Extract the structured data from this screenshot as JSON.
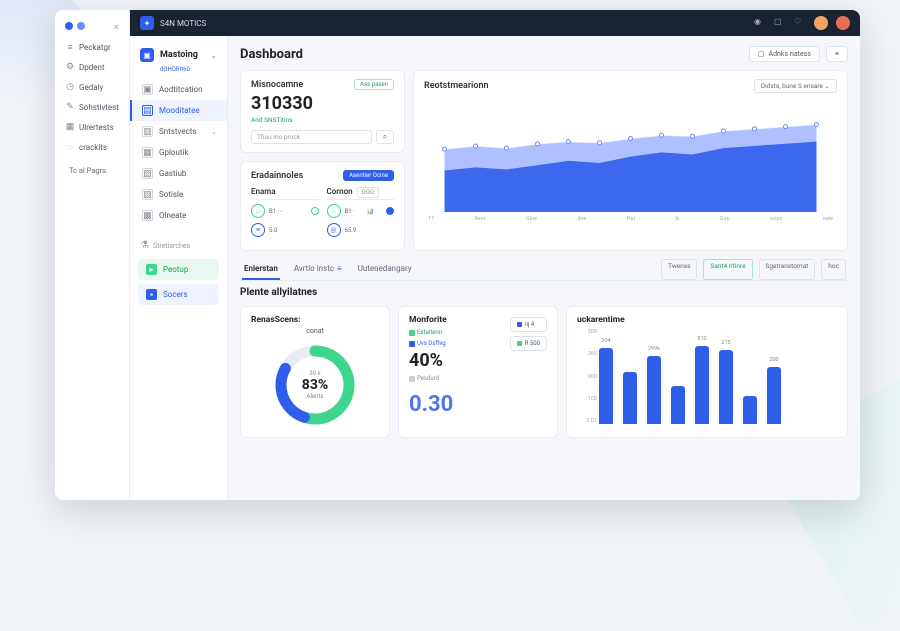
{
  "topbar": {
    "brand": "S4N MOTICS"
  },
  "sidebar_outer": {
    "items": [
      {
        "icon": "≡",
        "label": "Peckatgr"
      },
      {
        "icon": "⚙",
        "label": "Dpdent"
      },
      {
        "icon": "◷",
        "label": "Gedaly"
      },
      {
        "icon": "✎",
        "label": "Sohstivtest"
      },
      {
        "icon": "▦",
        "label": "Ulrertests"
      },
      {
        "icon": "◌",
        "label": "crackits"
      }
    ],
    "footer": "Tc al Pagrs"
  },
  "sidebar_inner": {
    "title": "Mastoing",
    "subtitle": "dGHORIt60",
    "items": [
      {
        "icon": "▣",
        "label": "Aodtitcation",
        "active": false,
        "chev": false
      },
      {
        "icon": "▤",
        "label": "Mooditatee",
        "active": true,
        "chev": false
      },
      {
        "icon": "▥",
        "label": "Sntstvects",
        "active": false,
        "chev": true
      },
      {
        "icon": "▦",
        "label": "Gploutik",
        "active": false,
        "chev": false
      },
      {
        "icon": "▧",
        "label": "Gastiub",
        "active": false,
        "chev": false
      },
      {
        "icon": "▨",
        "label": "Sotisle",
        "active": false,
        "chev": false
      },
      {
        "icon": "▩",
        "label": "Olneate",
        "active": false,
        "chev": false
      }
    ],
    "section_label": "Stretisrches",
    "btn_green": "Peotup",
    "btn_blue": "Socers"
  },
  "page": {
    "title": "Dashboard",
    "action_label": "Adnks riatess"
  },
  "metric_card": {
    "title": "Misnocamne",
    "badge": "Ass pasen",
    "value": "310330",
    "subtitle": "And SNSTitins",
    "placeholder": "Thou ino prock"
  },
  "area_chart": {
    "title": "Reotstmearionn",
    "dropdown": "Didsts, bune S ensare",
    "series1": [
      55,
      58,
      56,
      60,
      62,
      61,
      65,
      68,
      67,
      72,
      74,
      76,
      78
    ],
    "series2": [
      35,
      38,
      36,
      40,
      44,
      42,
      48,
      52,
      50,
      56,
      58,
      60,
      62
    ],
    "x_labels": [
      "17",
      "Rest",
      "Glne",
      "dne",
      "Hal",
      "ls",
      "Gap",
      "oops",
      "vate"
    ],
    "colors": {
      "s1": "#6b8cff",
      "s2": "#2f5eea",
      "bg": "#ffffff"
    }
  },
  "era_card": {
    "title": "Eradainnoles",
    "button": "Asentier Ocine",
    "col1": {
      "title": "Enama",
      "r1": "B1 · -",
      "r2": "5.0"
    },
    "col2": {
      "title": "Cornon",
      "in": "OOO",
      "r1": "B1 ·",
      "r2": "65.9"
    }
  },
  "tabs": {
    "items": [
      "Enlerstan",
      "Avrtlo instc",
      "Uutenedangary"
    ],
    "active": 0,
    "pills": [
      "Twenss",
      "Sant4 ritinre",
      "Sgetranstomat",
      "hoc"
    ]
  },
  "section_title": "Plente allyilatnes",
  "donut": {
    "title": "RenasScens:",
    "subtitle": "conat",
    "pre": "39 s",
    "value": "83%",
    "label": "Alents",
    "arc_green": 0.55,
    "arc_blue": 0.28,
    "colors": {
      "green": "#3dd68c",
      "blue": "#2f5eea",
      "track": "#e8ecf2"
    }
  },
  "monforite": {
    "title": "Monforite",
    "tag1": "Estaitenn",
    "tag2": "Uvs Dsfhig",
    "value": "40%",
    "tag3": "Pesdurd",
    "big": "0.30",
    "side1": "nj   4",
    "side2": "R 500"
  },
  "bar_chart": {
    "title": "uckarentime",
    "y_ticks": [
      "500",
      "265",
      "200",
      "100",
      "0.01"
    ],
    "bars": [
      {
        "v": 80,
        "lbl": "204"
      },
      {
        "v": 55,
        "lbl": ""
      },
      {
        "v": 72,
        "lbl": "299k"
      },
      {
        "v": 40,
        "lbl": ""
      },
      {
        "v": 82,
        "lbl": "510"
      },
      {
        "v": 78,
        "lbl": "215"
      },
      {
        "v": 30,
        "lbl": ""
      },
      {
        "v": 60,
        "lbl": "200"
      }
    ],
    "bar_color": "#2f5eea"
  }
}
